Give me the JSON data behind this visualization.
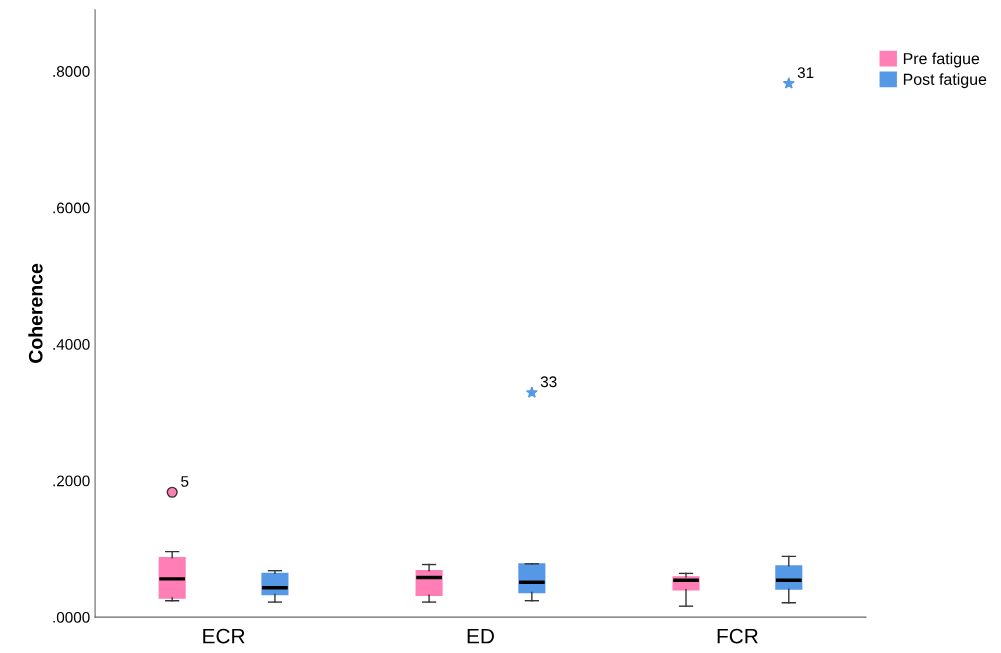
{
  "chart_data": {
    "type": "box",
    "ylabel": "Coherence",
    "categories": [
      "ECR",
      "ED",
      "FCR"
    ],
    "series": [
      {
        "name": "Pre fatigue",
        "color": "#ff7eb6",
        "marker": "circle",
        "boxes": [
          {
            "low": 0.024,
            "q1": 0.028,
            "median": 0.056,
            "q3": 0.087,
            "high": 0.096,
            "outliers": [
              0.183
            ]
          },
          {
            "low": 0.022,
            "q1": 0.032,
            "median": 0.058,
            "q3": 0.068,
            "high": 0.077
          },
          {
            "low": 0.016,
            "q1": 0.04,
            "median": 0.054,
            "q3": 0.059,
            "high": 0.064
          }
        ]
      },
      {
        "name": "Post fatigue",
        "color": "#5598e6",
        "marker": "star",
        "boxes": [
          {
            "low": 0.022,
            "q1": 0.033,
            "median": 0.043,
            "q3": 0.064,
            "high": 0.068
          },
          {
            "low": 0.024,
            "q1": 0.036,
            "median": 0.051,
            "q3": 0.078,
            "high": 0.078,
            "outliers": [
              0.329
            ]
          },
          {
            "low": 0.021,
            "q1": 0.041,
            "median": 0.054,
            "q3": 0.075,
            "high": 0.089,
            "outliers": [
              0.782
            ]
          }
        ]
      }
    ],
    "ylim": [
      0,
      0.89
    ],
    "yticks": [
      {
        "value": 0,
        "label": ".0000"
      },
      {
        "value": 0.2,
        "label": ".2000"
      },
      {
        "value": 0.4,
        "label": ".4000"
      },
      {
        "value": 0.6,
        "label": ".6000"
      },
      {
        "value": 0.8,
        "label": ".8000"
      }
    ],
    "annotations": [
      "5",
      "33",
      "31"
    ],
    "grid": false,
    "legend": "top right"
  }
}
